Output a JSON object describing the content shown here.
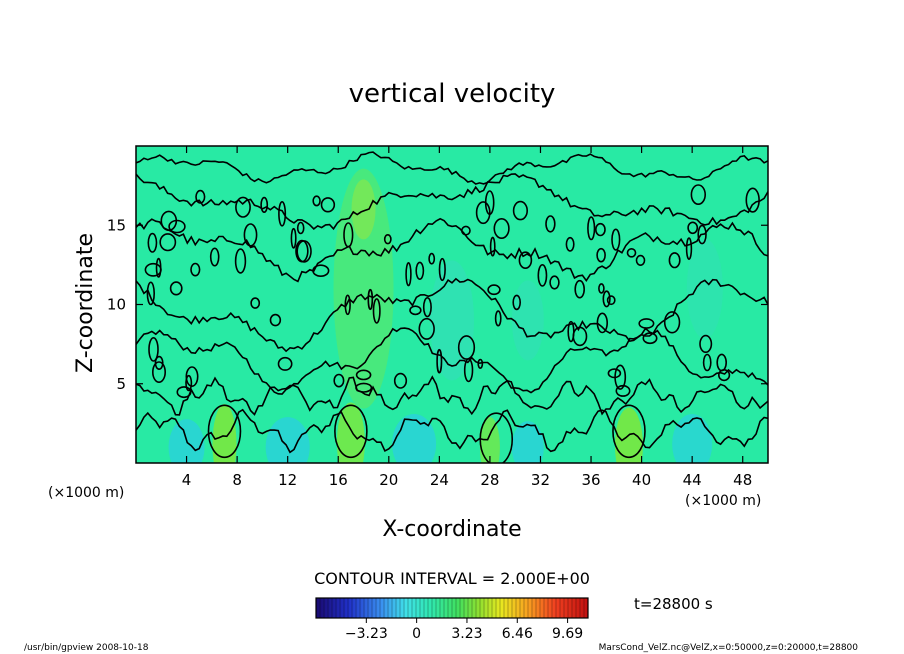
{
  "chart_data": {
    "type": "heatmap",
    "title": "vertical velocity",
    "xlabel": "X-coordinate",
    "ylabel": "Z-coordinate",
    "x_unit_left": "(×1000 m)",
    "x_unit_right": "(×1000 m)",
    "xlim": [
      0,
      50
    ],
    "ylim": [
      0,
      20
    ],
    "x_ticks": [
      4,
      8,
      12,
      16,
      20,
      24,
      28,
      32,
      36,
      40,
      44,
      48
    ],
    "y_ticks": [
      5,
      10,
      15
    ],
    "contour_interval_text": "CONTOUR INTERVAL = 2.000E+00",
    "time_text": "t=28800 s",
    "colorbar": {
      "range": [
        -6.46,
        11.0
      ],
      "tick_values": [
        -3.23,
        0,
        3.23,
        6.46,
        9.69
      ],
      "tick_labels": [
        "−3.23",
        "0",
        "3.23",
        "6.46",
        "9.69"
      ]
    },
    "footer_left": "/usr/bin/gpview   2008-10-18",
    "footer_right": "MarsCond_VelZ.nc@VelZ,x=0:50000,z=0:20000,t=28800"
  }
}
